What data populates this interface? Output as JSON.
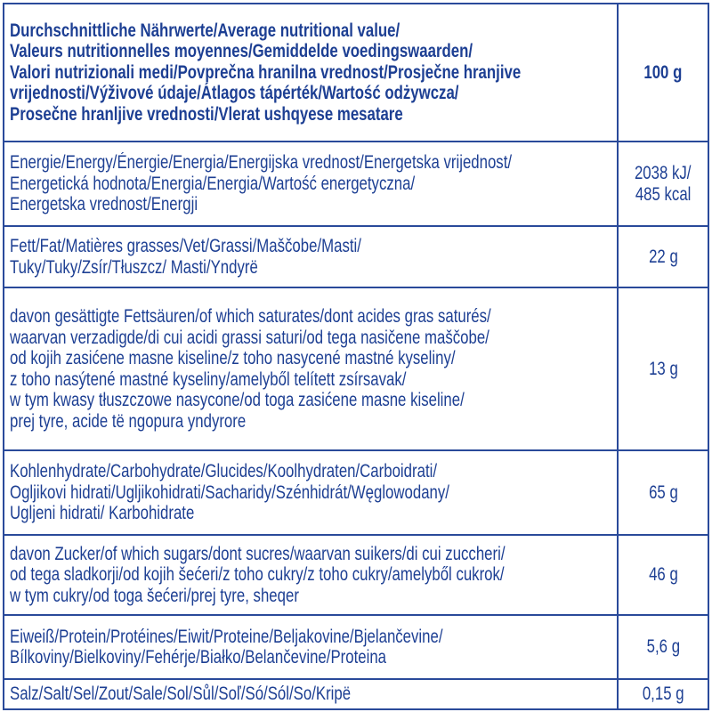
{
  "table": {
    "header": {
      "lines": [
        "Durchschnittliche Nährwerte/Average nutritional value/",
        "Valeurs nutritionnelles moyennes/Gemiddelde voedingswaarden/",
        "Valori nutrizionali medi/Povprečna hranilna vrednost/Prosječne hranjive",
        "vrijednosti/Výživové údaje/Átlagos tápérték/Wartość odżywcza/",
        "Prosečne hranljive vrednosti/Vlerat ushqyese mesatare"
      ],
      "value": [
        "100 g"
      ]
    },
    "rows": [
      {
        "lines": [
          "Energie/Energy/Énergie/Energia/Energijska vrednost/Energetska vrijednost/",
          "Energetická hodnota/Energia/Energia/Wartość energetyczna/",
          "Energetska vrednost/Energji"
        ],
        "value": [
          "2038 kJ/",
          "485 kcal"
        ]
      },
      {
        "lines": [
          "Fett/Fat/Matières grasses/Vet/Grassi/Maščobe/Masti/",
          "Tuky/Tuky/Zsír/Tłuszcz/ Masti/Yndyrë"
        ],
        "value": [
          "22 g"
        ]
      },
      {
        "lines": [
          "davon gesättigte Fettsäuren/of which saturates/dont acides gras saturés/",
          "waarvan verzadigde/di cui acidi grassi saturi/od tega nasičene maščobe/",
          "od kojih zasićene masne kiseline/z toho nasycené mastné kyseliny/",
          "z toho nasýtené mastné kyseliny/amelyből telített zsírsavak/",
          "w tym kwasy tłuszczowe nasycone/od toga zasićene masne kiseline/",
          "prej tyre, acide të ngopura yndyrore"
        ],
        "value": [
          "13 g"
        ]
      },
      {
        "lines": [
          "Kohlenhydrate/Carbohydrate/Glucides/Koolhydraten/Carboidrati/",
          "Ogljikovi hidrati/Ugljikohidrati/Sacharidy/Szénhidrát/Węglowodany/",
          "Ugljeni hidrati/ Karbohidrate"
        ],
        "value": [
          "65 g"
        ]
      },
      {
        "lines": [
          "davon Zucker/of which sugars/dont sucres/waarvan suikers/di cui zuccheri/",
          "od tega sladkorji/od kojih šećeri/z toho cukry/z toho cukry/amelyből cukrok/",
          "w tym cukry/od toga šećeri/prej tyre, sheqer"
        ],
        "value": [
          "46 g"
        ]
      },
      {
        "lines": [
          "Eiweiß/Protein/Protéines/Eiwit/Proteine/Beljakovine/Bjelančevine/",
          "Bílkoviny/Bielkoviny/Fehérje/Białko/Belančevine/Proteina"
        ],
        "value": [
          "5,6 g"
        ]
      },
      {
        "lines": [
          "Salz/Salt/Sel/Zout/Sale/Sol/Sůl/Soľ/Só/Sól/So/Kripë"
        ],
        "value": [
          "0,15 g"
        ]
      }
    ]
  }
}
